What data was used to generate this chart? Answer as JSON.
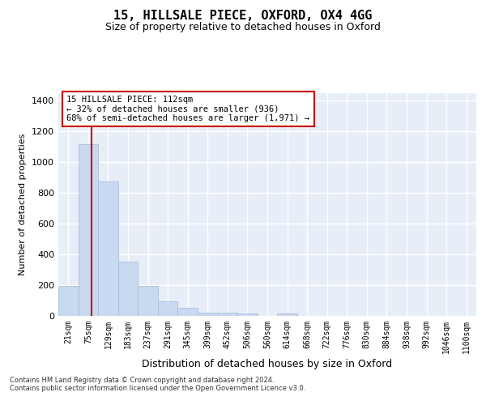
{
  "title": "15, HILLSALE PIECE, OXFORD, OX4 4GG",
  "subtitle": "Size of property relative to detached houses in Oxford",
  "xlabel": "Distribution of detached houses by size in Oxford",
  "ylabel": "Number of detached properties",
  "bin_labels": [
    "21sqm",
    "75sqm",
    "129sqm",
    "183sqm",
    "237sqm",
    "291sqm",
    "345sqm",
    "399sqm",
    "452sqm",
    "506sqm",
    "560sqm",
    "614sqm",
    "668sqm",
    "722sqm",
    "776sqm",
    "830sqm",
    "884sqm",
    "938sqm",
    "992sqm",
    "1046sqm",
    "1100sqm"
  ],
  "bar_heights": [
    197,
    1120,
    875,
    352,
    195,
    97,
    52,
    22,
    19,
    16,
    0,
    14,
    0,
    0,
    0,
    0,
    0,
    0,
    0,
    0,
    0
  ],
  "bar_color": "#c9d9f0",
  "bar_edgecolor": "#a0b8d8",
  "vline_color": "#cc0000",
  "annotation_text": "15 HILLSALE PIECE: 112sqm\n← 32% of detached houses are smaller (936)\n68% of semi-detached houses are larger (1,971) →",
  "annotation_box_color": "#ffffff",
  "annotation_box_edgecolor": "#cc0000",
  "ylim": [
    0,
    1450
  ],
  "yticks": [
    0,
    200,
    400,
    600,
    800,
    1000,
    1200,
    1400
  ],
  "bg_color": "#e8eef8",
  "grid_color": "#ffffff",
  "footnote1": "Contains HM Land Registry data © Crown copyright and database right 2024.",
  "footnote2": "Contains public sector information licensed under the Open Government Licence v3.0."
}
